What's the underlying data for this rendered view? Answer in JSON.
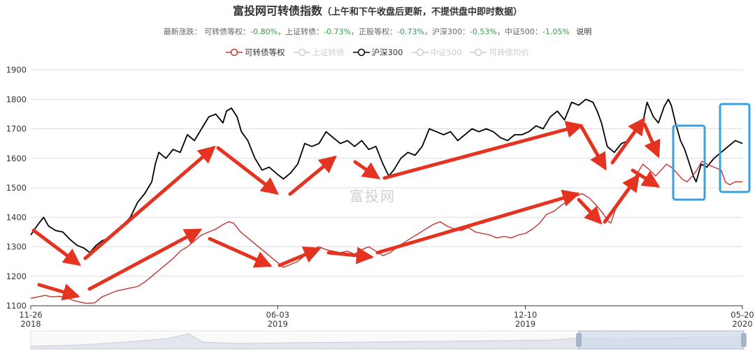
{
  "header": {
    "title": "富投网可转债指数",
    "subtitle": "（上午和下午收盘后更新，不提供盘中即时数据）"
  },
  "stats": {
    "prefix": "最新涨跌：",
    "items": [
      {
        "label": "可转债等权：",
        "value": "-0.80%",
        "sep": "，"
      },
      {
        "label": "上证转债：",
        "value": "-0.73%",
        "sep": "，"
      },
      {
        "label": "正股等权：",
        "value": "-0.73%",
        "sep": "，"
      },
      {
        "label": "沪深300：",
        "value": "-0.53%",
        "sep": "，"
      },
      {
        "label": "中证500：",
        "value": "-1.05%",
        "sep": ""
      }
    ],
    "explain_label": "说明"
  },
  "legend": [
    {
      "label": "可转债等权",
      "color": "#c23531",
      "active": true
    },
    {
      "label": "上证转债",
      "color": "#cccccc",
      "active": false
    },
    {
      "label": "沪深300",
      "color": "#000000",
      "active": true
    },
    {
      "label": "中证500",
      "color": "#cccccc",
      "active": false
    },
    {
      "label": "可转债均价",
      "color": "#cccccc",
      "active": false
    }
  ],
  "watermark": "富投网",
  "chart_data": {
    "type": "line",
    "ylim": [
      1100,
      1900
    ],
    "yticks": [
      1100,
      1200,
      1300,
      1400,
      1500,
      1600,
      1700,
      1800,
      1900
    ],
    "x_range": [
      0,
      100
    ],
    "xticks": [
      {
        "x": 0,
        "line1": "11-26",
        "line2": "2018"
      },
      {
        "x": 34.7,
        "line1": "06-03",
        "line2": "2019"
      },
      {
        "x": 69.5,
        "line1": "12-10",
        "line2": "2019"
      },
      {
        "x": 100,
        "line1": "05-20",
        "line2": "2020"
      }
    ],
    "series": [
      {
        "name": "沪深300",
        "color": "#000000",
        "points": [
          [
            0,
            1340
          ],
          [
            1,
            1375
          ],
          [
            1.8,
            1400
          ],
          [
            2.5,
            1370
          ],
          [
            3.5,
            1355
          ],
          [
            4.5,
            1350
          ],
          [
            5.5,
            1325
          ],
          [
            6.5,
            1305
          ],
          [
            7.5,
            1295
          ],
          [
            8.3,
            1280
          ],
          [
            9.2,
            1305
          ],
          [
            10,
            1320
          ],
          [
            11,
            1330
          ],
          [
            12,
            1350
          ],
          [
            13,
            1375
          ],
          [
            14,
            1400
          ],
          [
            15,
            1450
          ],
          [
            16,
            1480
          ],
          [
            17,
            1520
          ],
          [
            17.5,
            1580
          ],
          [
            18,
            1620
          ],
          [
            19,
            1600
          ],
          [
            20,
            1630
          ],
          [
            21,
            1620
          ],
          [
            22,
            1680
          ],
          [
            23,
            1660
          ],
          [
            24,
            1700
          ],
          [
            25,
            1740
          ],
          [
            26,
            1750
          ],
          [
            27,
            1720
          ],
          [
            27.5,
            1760
          ],
          [
            28.2,
            1770
          ],
          [
            29,
            1740
          ],
          [
            29.6,
            1690
          ],
          [
            30.5,
            1660
          ],
          [
            31.5,
            1600
          ],
          [
            32.5,
            1560
          ],
          [
            33.5,
            1570
          ],
          [
            34.7,
            1545
          ],
          [
            35.5,
            1530
          ],
          [
            36.5,
            1550
          ],
          [
            37.5,
            1580
          ],
          [
            38.5,
            1650
          ],
          [
            39.5,
            1640
          ],
          [
            40.5,
            1650
          ],
          [
            41.5,
            1690
          ],
          [
            42.5,
            1670
          ],
          [
            43.5,
            1650
          ],
          [
            44.5,
            1660
          ],
          [
            45.5,
            1640
          ],
          [
            46.5,
            1660
          ],
          [
            47.5,
            1630
          ],
          [
            48.5,
            1640
          ],
          [
            49.5,
            1580
          ],
          [
            50.3,
            1540
          ],
          [
            51,
            1560
          ],
          [
            52,
            1600
          ],
          [
            53,
            1620
          ],
          [
            54,
            1610
          ],
          [
            55,
            1640
          ],
          [
            56,
            1700
          ],
          [
            57,
            1690
          ],
          [
            58,
            1680
          ],
          [
            59,
            1690
          ],
          [
            60,
            1660
          ],
          [
            61,
            1680
          ],
          [
            62,
            1700
          ],
          [
            63,
            1690
          ],
          [
            64,
            1700
          ],
          [
            65,
            1690
          ],
          [
            66,
            1670
          ],
          [
            67,
            1660
          ],
          [
            68,
            1680
          ],
          [
            69,
            1680
          ],
          [
            70,
            1690
          ],
          [
            71,
            1710
          ],
          [
            72,
            1700
          ],
          [
            73,
            1740
          ],
          [
            74,
            1760
          ],
          [
            75,
            1730
          ],
          [
            76,
            1790
          ],
          [
            77,
            1780
          ],
          [
            78,
            1800
          ],
          [
            79,
            1790
          ],
          [
            79.6,
            1760
          ],
          [
            80.2,
            1720
          ],
          [
            81,
            1640
          ],
          [
            82,
            1620
          ],
          [
            83,
            1650
          ],
          [
            84,
            1660
          ],
          [
            85,
            1690
          ],
          [
            86,
            1720
          ],
          [
            86.6,
            1790
          ],
          [
            87.5,
            1740
          ],
          [
            88.2,
            1720
          ],
          [
            89,
            1775
          ],
          [
            89.6,
            1800
          ],
          [
            90,
            1780
          ],
          [
            90.6,
            1720
          ],
          [
            91.3,
            1660
          ],
          [
            91.9,
            1630
          ],
          [
            92.5,
            1585
          ],
          [
            93.1,
            1540
          ],
          [
            93.5,
            1520
          ],
          [
            94.2,
            1580
          ],
          [
            95,
            1570
          ],
          [
            96,
            1600
          ],
          [
            97,
            1620
          ],
          [
            98,
            1640
          ],
          [
            99,
            1660
          ],
          [
            100,
            1650
          ]
        ]
      },
      {
        "name": "可转债等权",
        "color": "#c23531",
        "points": [
          [
            0,
            1125
          ],
          [
            1,
            1130
          ],
          [
            2,
            1135
          ],
          [
            3,
            1130
          ],
          [
            4,
            1132
          ],
          [
            5,
            1128
          ],
          [
            6,
            1118
          ],
          [
            7,
            1112
          ],
          [
            7.8,
            1108
          ],
          [
            9,
            1110
          ],
          [
            10,
            1130
          ],
          [
            11,
            1140
          ],
          [
            12,
            1150
          ],
          [
            13,
            1155
          ],
          [
            14,
            1160
          ],
          [
            15,
            1165
          ],
          [
            16,
            1180
          ],
          [
            17,
            1200
          ],
          [
            18,
            1220
          ],
          [
            19,
            1240
          ],
          [
            20,
            1260
          ],
          [
            21,
            1285
          ],
          [
            22,
            1300
          ],
          [
            23,
            1320
          ],
          [
            24,
            1340
          ],
          [
            25,
            1350
          ],
          [
            26,
            1360
          ],
          [
            27,
            1375
          ],
          [
            27.8,
            1385
          ],
          [
            28.5,
            1380
          ],
          [
            29.5,
            1350
          ],
          [
            30.5,
            1330
          ],
          [
            31.5,
            1310
          ],
          [
            32.5,
            1290
          ],
          [
            33.5,
            1270
          ],
          [
            34.5,
            1250
          ],
          [
            35.5,
            1230
          ],
          [
            36.5,
            1240
          ],
          [
            37.5,
            1250
          ],
          [
            38.5,
            1270
          ],
          [
            39.5,
            1290
          ],
          [
            40.5,
            1300
          ],
          [
            41.5,
            1290
          ],
          [
            42.5,
            1285
          ],
          [
            43.5,
            1280
          ],
          [
            44.5,
            1285
          ],
          [
            45.5,
            1275
          ],
          [
            46.5,
            1290
          ],
          [
            47.5,
            1300
          ],
          [
            48.5,
            1285
          ],
          [
            49.5,
            1270
          ],
          [
            50.5,
            1280
          ],
          [
            51.5,
            1300
          ],
          [
            52.5,
            1315
          ],
          [
            53.5,
            1330
          ],
          [
            54.5,
            1345
          ],
          [
            55.5,
            1360
          ],
          [
            56.5,
            1375
          ],
          [
            57.5,
            1385
          ],
          [
            58.5,
            1370
          ],
          [
            59.5,
            1360
          ],
          [
            60.5,
            1355
          ],
          [
            61.5,
            1365
          ],
          [
            62.5,
            1350
          ],
          [
            63.5,
            1345
          ],
          [
            64.5,
            1340
          ],
          [
            65.5,
            1330
          ],
          [
            66.5,
            1335
          ],
          [
            67.5,
            1330
          ],
          [
            68.5,
            1340
          ],
          [
            69.5,
            1345
          ],
          [
            70.5,
            1360
          ],
          [
            71.5,
            1380
          ],
          [
            72.5,
            1410
          ],
          [
            73.5,
            1420
          ],
          [
            74.5,
            1440
          ],
          [
            75.5,
            1455
          ],
          [
            76.5,
            1470
          ],
          [
            77.5,
            1480
          ],
          [
            78.5,
            1465
          ],
          [
            79.5,
            1440
          ],
          [
            80.5,
            1410
          ],
          [
            81,
            1390
          ],
          [
            81.5,
            1380
          ],
          [
            82.5,
            1450
          ],
          [
            83.5,
            1480
          ],
          [
            84.5,
            1520
          ],
          [
            85.5,
            1560
          ],
          [
            86,
            1580
          ],
          [
            87,
            1560
          ],
          [
            87.8,
            1540
          ],
          [
            88.6,
            1560
          ],
          [
            89.3,
            1580
          ],
          [
            90,
            1570
          ],
          [
            90.8,
            1550
          ],
          [
            91.5,
            1530
          ],
          [
            92.2,
            1520
          ],
          [
            93,
            1540
          ],
          [
            93.6,
            1560
          ],
          [
            94.3,
            1590
          ],
          [
            95,
            1580
          ],
          [
            96,
            1570
          ],
          [
            97,
            1560
          ],
          [
            97.6,
            1520
          ],
          [
            98.2,
            1510
          ],
          [
            99,
            1520
          ],
          [
            100,
            1520
          ]
        ]
      }
    ],
    "annotations": {
      "arrows_color": "#e53322",
      "box_color": "#3aa0e0"
    }
  }
}
